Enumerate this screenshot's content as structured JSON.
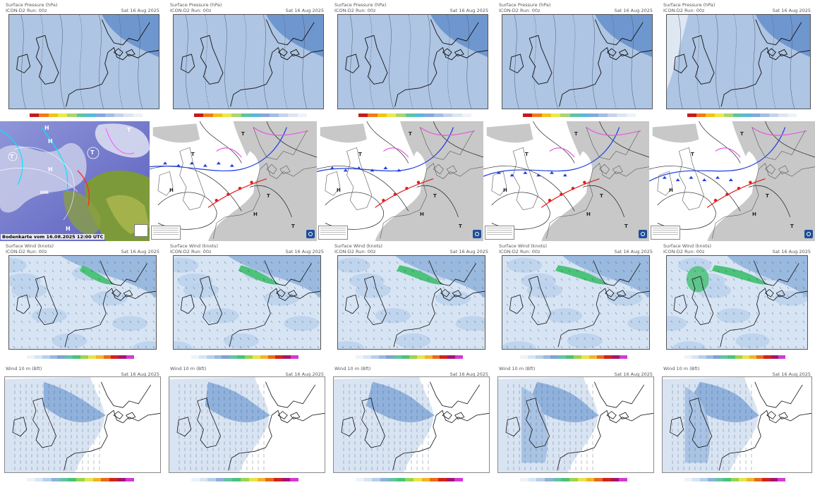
{
  "row1": {
    "title": "Surface Pressure (hPa)",
    "source": "ICON-D2",
    "panels": [
      {
        "run": "ICON-D2 Run: 00z",
        "valid": "Sat 16 Aug 2025"
      },
      {
        "run": "ICON-D2 Run: 00z",
        "valid": "Sat 16 Aug 2025"
      },
      {
        "run": "ICON-D2 Run: 00z",
        "valid": "Sat 16 Aug 2025"
      },
      {
        "run": "ICON-D2 Run: 00z",
        "valid": "Sat 16 Aug 2025"
      },
      {
        "run": "ICON-D2 Run: 00z",
        "valid": "Sat 16 Aug 2025"
      }
    ]
  },
  "row2": {
    "caption": "Bodenkarte vom 16.08.2025 12:00 UTC",
    "labels": [
      "H",
      "T",
      "H",
      "T",
      "H",
      "HIK",
      "T",
      "H"
    ]
  },
  "row3": {
    "title": "Surface Wind (knots)",
    "source": "ICON-D2 Run: 00z",
    "valid": "Sat 16 Aug 2025",
    "panels": [
      {},
      {},
      {},
      {},
      {}
    ]
  },
  "row4": {
    "title": "Wind 10 m (Bft)",
    "valid": "Sat 16 Aug 2025",
    "panels": [
      {},
      {},
      {},
      {},
      {}
    ]
  },
  "colors": {
    "pressure_fill": "#aec5e3",
    "pressure_dark": "#6f97cf",
    "wind_light": "#d6e4f4",
    "wind_mid": "#9ab9df",
    "wind_green": "#4cc27a",
    "land_grey": "#c8c8c8"
  }
}
